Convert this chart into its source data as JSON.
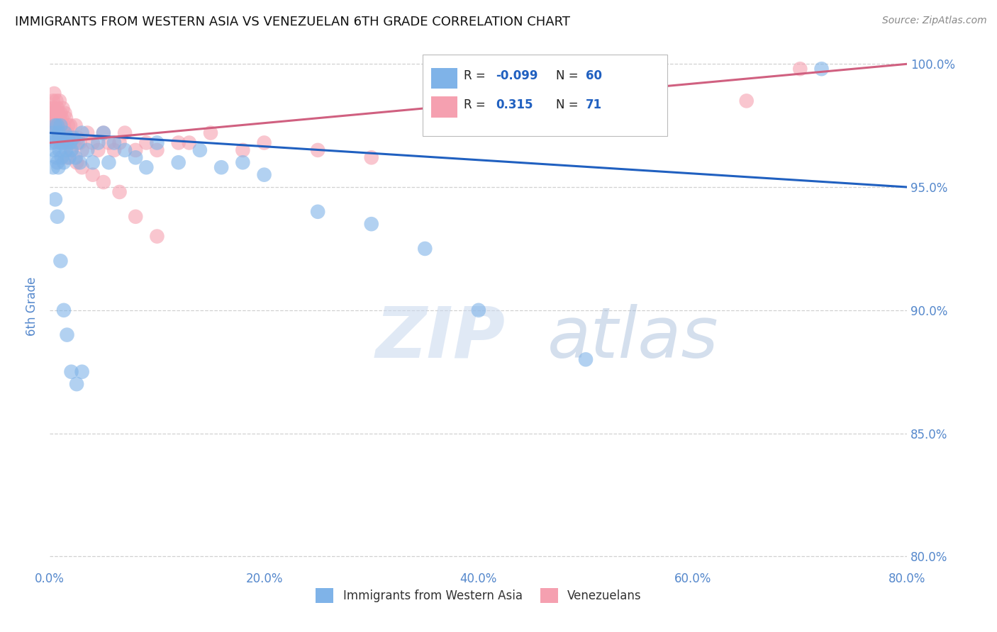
{
  "title": "IMMIGRANTS FROM WESTERN ASIA VS VENEZUELAN 6TH GRADE CORRELATION CHART",
  "source": "Source: ZipAtlas.com",
  "ylabel": "6th Grade",
  "x_min": 0.0,
  "x_max": 0.8,
  "y_min": 0.795,
  "y_max": 1.008,
  "ytick_labels": [
    "80.0%",
    "85.0%",
    "90.0%",
    "95.0%",
    "100.0%"
  ],
  "ytick_values": [
    0.8,
    0.85,
    0.9,
    0.95,
    1.0
  ],
  "xtick_labels": [
    "0.0%",
    "20.0%",
    "40.0%",
    "60.0%",
    "80.0%"
  ],
  "xtick_values": [
    0.0,
    0.2,
    0.4,
    0.6,
    0.8
  ],
  "blue_r": -0.099,
  "blue_n": 60,
  "pink_r": 0.315,
  "pink_n": 71,
  "blue_color": "#7fb3e8",
  "pink_color": "#f5a0b0",
  "blue_line_color": "#2060c0",
  "pink_line_color": "#d06080",
  "legend_label_blue": "Immigrants from Western Asia",
  "legend_label_pink": "Venezuelans",
  "background_color": "#ffffff",
  "grid_color": "#cccccc",
  "title_color": "#111111",
  "axis_tick_color": "#5588cc",
  "watermark_text": "ZIPatlas",
  "watermark_color": "#d8e8f5",
  "blue_scatter_x": [
    0.001,
    0.002,
    0.003,
    0.004,
    0.005,
    0.006,
    0.006,
    0.007,
    0.007,
    0.008,
    0.008,
    0.009,
    0.009,
    0.01,
    0.01,
    0.011,
    0.012,
    0.013,
    0.014,
    0.015,
    0.016,
    0.017,
    0.018,
    0.019,
    0.02,
    0.022,
    0.024,
    0.026,
    0.028,
    0.03,
    0.035,
    0.04,
    0.045,
    0.05,
    0.055,
    0.06,
    0.07,
    0.08,
    0.09,
    0.1,
    0.12,
    0.14,
    0.16,
    0.18,
    0.2,
    0.25,
    0.3,
    0.35,
    0.4,
    0.5,
    0.003,
    0.005,
    0.007,
    0.01,
    0.013,
    0.016,
    0.02,
    0.025,
    0.03,
    0.72
  ],
  "blue_scatter_y": [
    0.97,
    0.968,
    0.972,
    0.965,
    0.975,
    0.968,
    0.962,
    0.975,
    0.96,
    0.972,
    0.958,
    0.965,
    0.97,
    0.968,
    0.975,
    0.962,
    0.968,
    0.96,
    0.972,
    0.965,
    0.968,
    0.97,
    0.962,
    0.968,
    0.965,
    0.97,
    0.962,
    0.968,
    0.96,
    0.972,
    0.965,
    0.96,
    0.968,
    0.972,
    0.96,
    0.968,
    0.965,
    0.962,
    0.958,
    0.968,
    0.96,
    0.965,
    0.958,
    0.96,
    0.955,
    0.94,
    0.935,
    0.925,
    0.9,
    0.88,
    0.958,
    0.945,
    0.938,
    0.92,
    0.9,
    0.89,
    0.875,
    0.87,
    0.875,
    0.998
  ],
  "pink_scatter_x": [
    0.001,
    0.002,
    0.003,
    0.003,
    0.004,
    0.004,
    0.005,
    0.005,
    0.006,
    0.006,
    0.007,
    0.007,
    0.008,
    0.008,
    0.009,
    0.009,
    0.01,
    0.01,
    0.011,
    0.012,
    0.013,
    0.014,
    0.015,
    0.016,
    0.017,
    0.018,
    0.019,
    0.02,
    0.022,
    0.024,
    0.026,
    0.028,
    0.03,
    0.035,
    0.04,
    0.045,
    0.05,
    0.055,
    0.06,
    0.065,
    0.07,
    0.08,
    0.09,
    0.1,
    0.12,
    0.15,
    0.18,
    0.2,
    0.25,
    0.3,
    0.002,
    0.004,
    0.006,
    0.008,
    0.01,
    0.013,
    0.016,
    0.02,
    0.025,
    0.03,
    0.04,
    0.05,
    0.065,
    0.08,
    0.1,
    0.13,
    0.4,
    0.5,
    0.55,
    0.65,
    0.7
  ],
  "pink_scatter_y": [
    0.975,
    0.98,
    0.978,
    0.985,
    0.982,
    0.988,
    0.98,
    0.975,
    0.985,
    0.978,
    0.982,
    0.975,
    0.98,
    0.972,
    0.978,
    0.985,
    0.98,
    0.975,
    0.978,
    0.982,
    0.975,
    0.98,
    0.978,
    0.972,
    0.975,
    0.968,
    0.975,
    0.97,
    0.968,
    0.975,
    0.97,
    0.968,
    0.965,
    0.972,
    0.968,
    0.965,
    0.972,
    0.968,
    0.965,
    0.968,
    0.972,
    0.965,
    0.968,
    0.965,
    0.968,
    0.972,
    0.965,
    0.968,
    0.965,
    0.962,
    0.982,
    0.978,
    0.975,
    0.97,
    0.972,
    0.968,
    0.962,
    0.965,
    0.96,
    0.958,
    0.955,
    0.952,
    0.948,
    0.938,
    0.93,
    0.968,
    0.975,
    0.978,
    0.98,
    0.985,
    0.998
  ],
  "blue_trend_x": [
    0.0,
    0.8
  ],
  "blue_trend_y": [
    0.972,
    0.95
  ],
  "pink_trend_x": [
    0.0,
    0.8
  ],
  "pink_trend_y": [
    0.968,
    1.0
  ]
}
